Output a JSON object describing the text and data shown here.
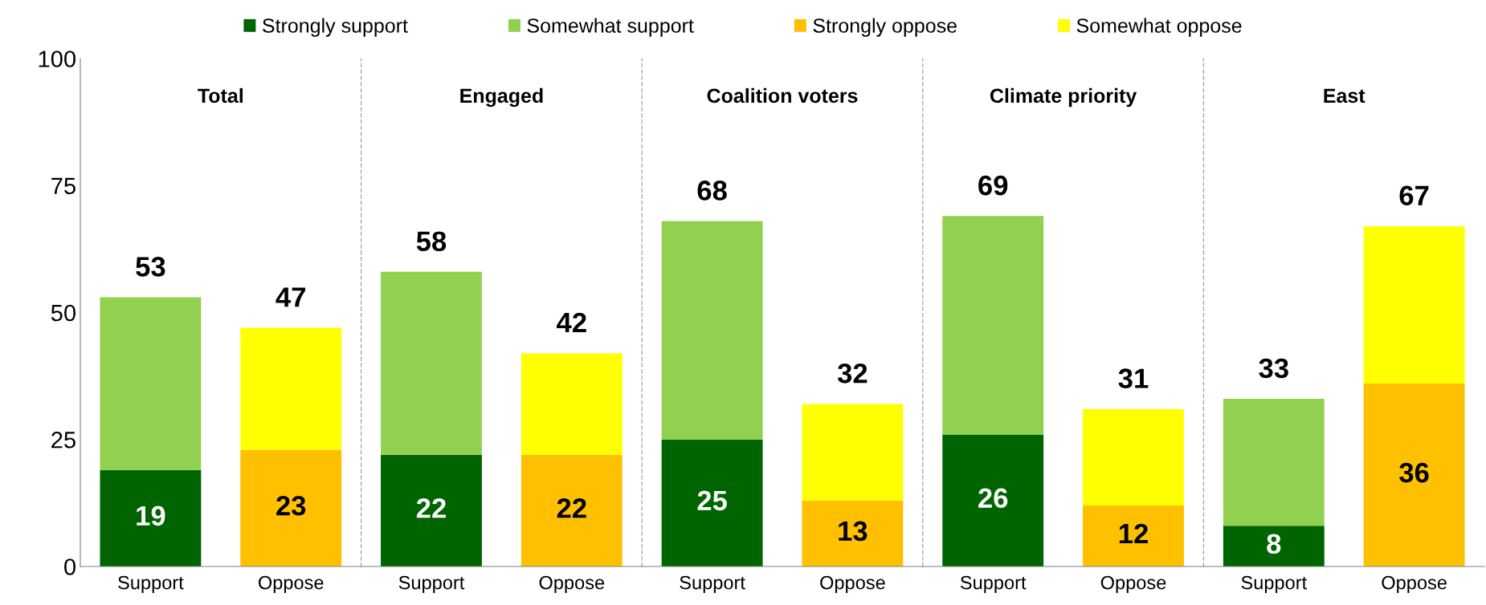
{
  "chart_data": [
    {
      "type": "bar",
      "title": "Total",
      "categories": [
        "Support",
        "Oppose"
      ],
      "stacked": true,
      "ylim": [
        0,
        100
      ],
      "yticks": [
        0,
        25,
        50,
        75,
        100
      ],
      "legend": "top",
      "grid": false,
      "totals": [
        "53",
        "47"
      ],
      "series": [
        {
          "name": "Strongly support",
          "color": "#006400",
          "values": [
            19,
            null
          ],
          "value_labels": [
            "19",
            null
          ]
        },
        {
          "name": "Somewhat support",
          "color": "#92d050",
          "values": [
            34,
            null
          ]
        },
        {
          "name": "Strongly oppose",
          "color": "#ffc000",
          "values": [
            null,
            23
          ],
          "value_labels": [
            null,
            "23"
          ]
        },
        {
          "name": "Somewhat oppose",
          "color": "#ffff00",
          "values": [
            null,
            24
          ]
        }
      ]
    },
    {
      "type": "bar",
      "title": "Engaged",
      "categories": [
        "Support",
        "Oppose"
      ],
      "stacked": true,
      "ylim": [
        0,
        100
      ],
      "tick_labels": "x",
      "grid": false,
      "totals": [
        "58",
        "42"
      ],
      "series": [
        {
          "color": "#006400",
          "values": [
            22,
            null
          ],
          "value_labels": [
            "22",
            null
          ]
        },
        {
          "color": "#92d050",
          "values": [
            36,
            null
          ]
        },
        {
          "color": "#ffc000",
          "values": [
            null,
            22
          ],
          "value_labels": [
            null,
            "22"
          ]
        },
        {
          "color": "#ffff00",
          "values": [
            null,
            20
          ]
        }
      ]
    },
    {
      "type": "bar",
      "title": "Coalition voters",
      "categories": [
        "Support",
        "Oppose"
      ],
      "stacked": true,
      "ylim": [
        0,
        100
      ],
      "tick_labels": "x",
      "grid": false,
      "totals": [
        "68",
        "32"
      ],
      "series": [
        {
          "color": "#006400",
          "values": [
            25,
            null
          ],
          "value_labels": [
            "25",
            null
          ]
        },
        {
          "color": "#92d050",
          "values": [
            43,
            null
          ]
        },
        {
          "color": "#ffc000",
          "values": [
            null,
            13
          ],
          "value_labels": [
            null,
            "13"
          ]
        },
        {
          "color": "#ffff00",
          "values": [
            null,
            19
          ]
        }
      ]
    },
    {
      "type": "bar",
      "title": "Climate priority",
      "categories": [
        "Support",
        "Oppose"
      ],
      "stacked": true,
      "ylim": [
        0,
        100
      ],
      "tick_labels": "x",
      "grid": false,
      "totals": [
        "69",
        "31"
      ],
      "series": [
        {
          "color": "#006400",
          "values": [
            26,
            null
          ],
          "value_labels": [
            "26",
            null
          ]
        },
        {
          "color": "#92d050",
          "values": [
            43,
            null
          ]
        },
        {
          "color": "#ffc000",
          "values": [
            null,
            12
          ],
          "value_labels": [
            null,
            "12"
          ]
        },
        {
          "color": "#ffff00",
          "values": [
            null,
            19
          ]
        }
      ]
    },
    {
      "type": "bar",
      "title": "East",
      "categories": [
        "Support",
        "Oppose"
      ],
      "stacked": true,
      "ylim": [
        0,
        100
      ],
      "tick_labels": "x",
      "grid": false,
      "totals": [
        "33",
        "67"
      ],
      "series": [
        {
          "color": "#006400",
          "values": [
            8,
            null
          ],
          "value_labels": [
            "8",
            null
          ]
        },
        {
          "color": "#92d050",
          "values": [
            25,
            null
          ]
        },
        {
          "color": "#ffc000",
          "values": [
            null,
            36
          ],
          "value_labels": [
            null,
            "36"
          ]
        },
        {
          "color": "#ffff00",
          "values": [
            null,
            31
          ]
        }
      ]
    }
  ]
}
